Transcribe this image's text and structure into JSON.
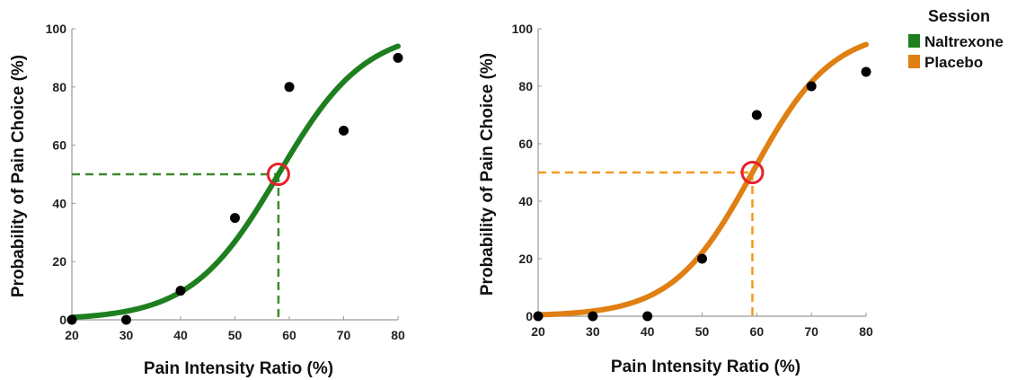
{
  "chart_data": [
    {
      "type": "scatter",
      "xlabel": "Pain Intensity Ratio (%)",
      "ylabel": "Probability  of Pain Choice (%)",
      "xlim": [
        20,
        80
      ],
      "ylim": [
        0,
        100
      ],
      "xticks": [
        "20",
        "30",
        "40",
        "50",
        "60",
        "70",
        "80"
      ],
      "yticks": [
        "0",
        "20",
        "40",
        "60",
        "80",
        "100"
      ],
      "color": "#1e7f1e",
      "guide_color": "#3e8a2a",
      "points": [
        {
          "x": 20,
          "y": 0
        },
        {
          "x": 30,
          "y": 0
        },
        {
          "x": 40,
          "y": 10
        },
        {
          "x": 50,
          "y": 35
        },
        {
          "x": 60,
          "y": 80
        },
        {
          "x": 70,
          "y": 65
        },
        {
          "x": 80,
          "y": 90
        }
      ],
      "fit": {
        "type": "logistic",
        "midpoint": 58,
        "slope": 0.125
      },
      "threshold": {
        "x": 58,
        "y": 50
      }
    },
    {
      "type": "scatter",
      "xlabel": "Pain Intensity Ratio (%)",
      "ylabel": "Probability  of Pain Choice (%)",
      "xlim": [
        20,
        80
      ],
      "ylim": [
        0,
        100
      ],
      "xticks": [
        "20",
        "30",
        "40",
        "50",
        "60",
        "70",
        "80"
      ],
      "yticks": [
        "0",
        "20",
        "40",
        "60",
        "80",
        "100"
      ],
      "color": "#e07f12",
      "guide_color": "#f39a1e",
      "points": [
        {
          "x": 20,
          "y": 0
        },
        {
          "x": 30,
          "y": 0
        },
        {
          "x": 40,
          "y": 0
        },
        {
          "x": 50,
          "y": 20
        },
        {
          "x": 60,
          "y": 70
        },
        {
          "x": 70,
          "y": 80
        },
        {
          "x": 80,
          "y": 85
        }
      ],
      "fit": {
        "type": "logistic",
        "midpoint": 59.2,
        "slope": 0.137
      },
      "threshold": {
        "x": 59.2,
        "y": 50
      }
    }
  ],
  "legend": {
    "title": "Session",
    "items": [
      {
        "label": "Naltrexone",
        "color": "#1e7f1e"
      },
      {
        "label": "Placebo",
        "color": "#e07f12"
      }
    ]
  },
  "threshold_marker_color": "#e8202a",
  "point_color": "#000000"
}
